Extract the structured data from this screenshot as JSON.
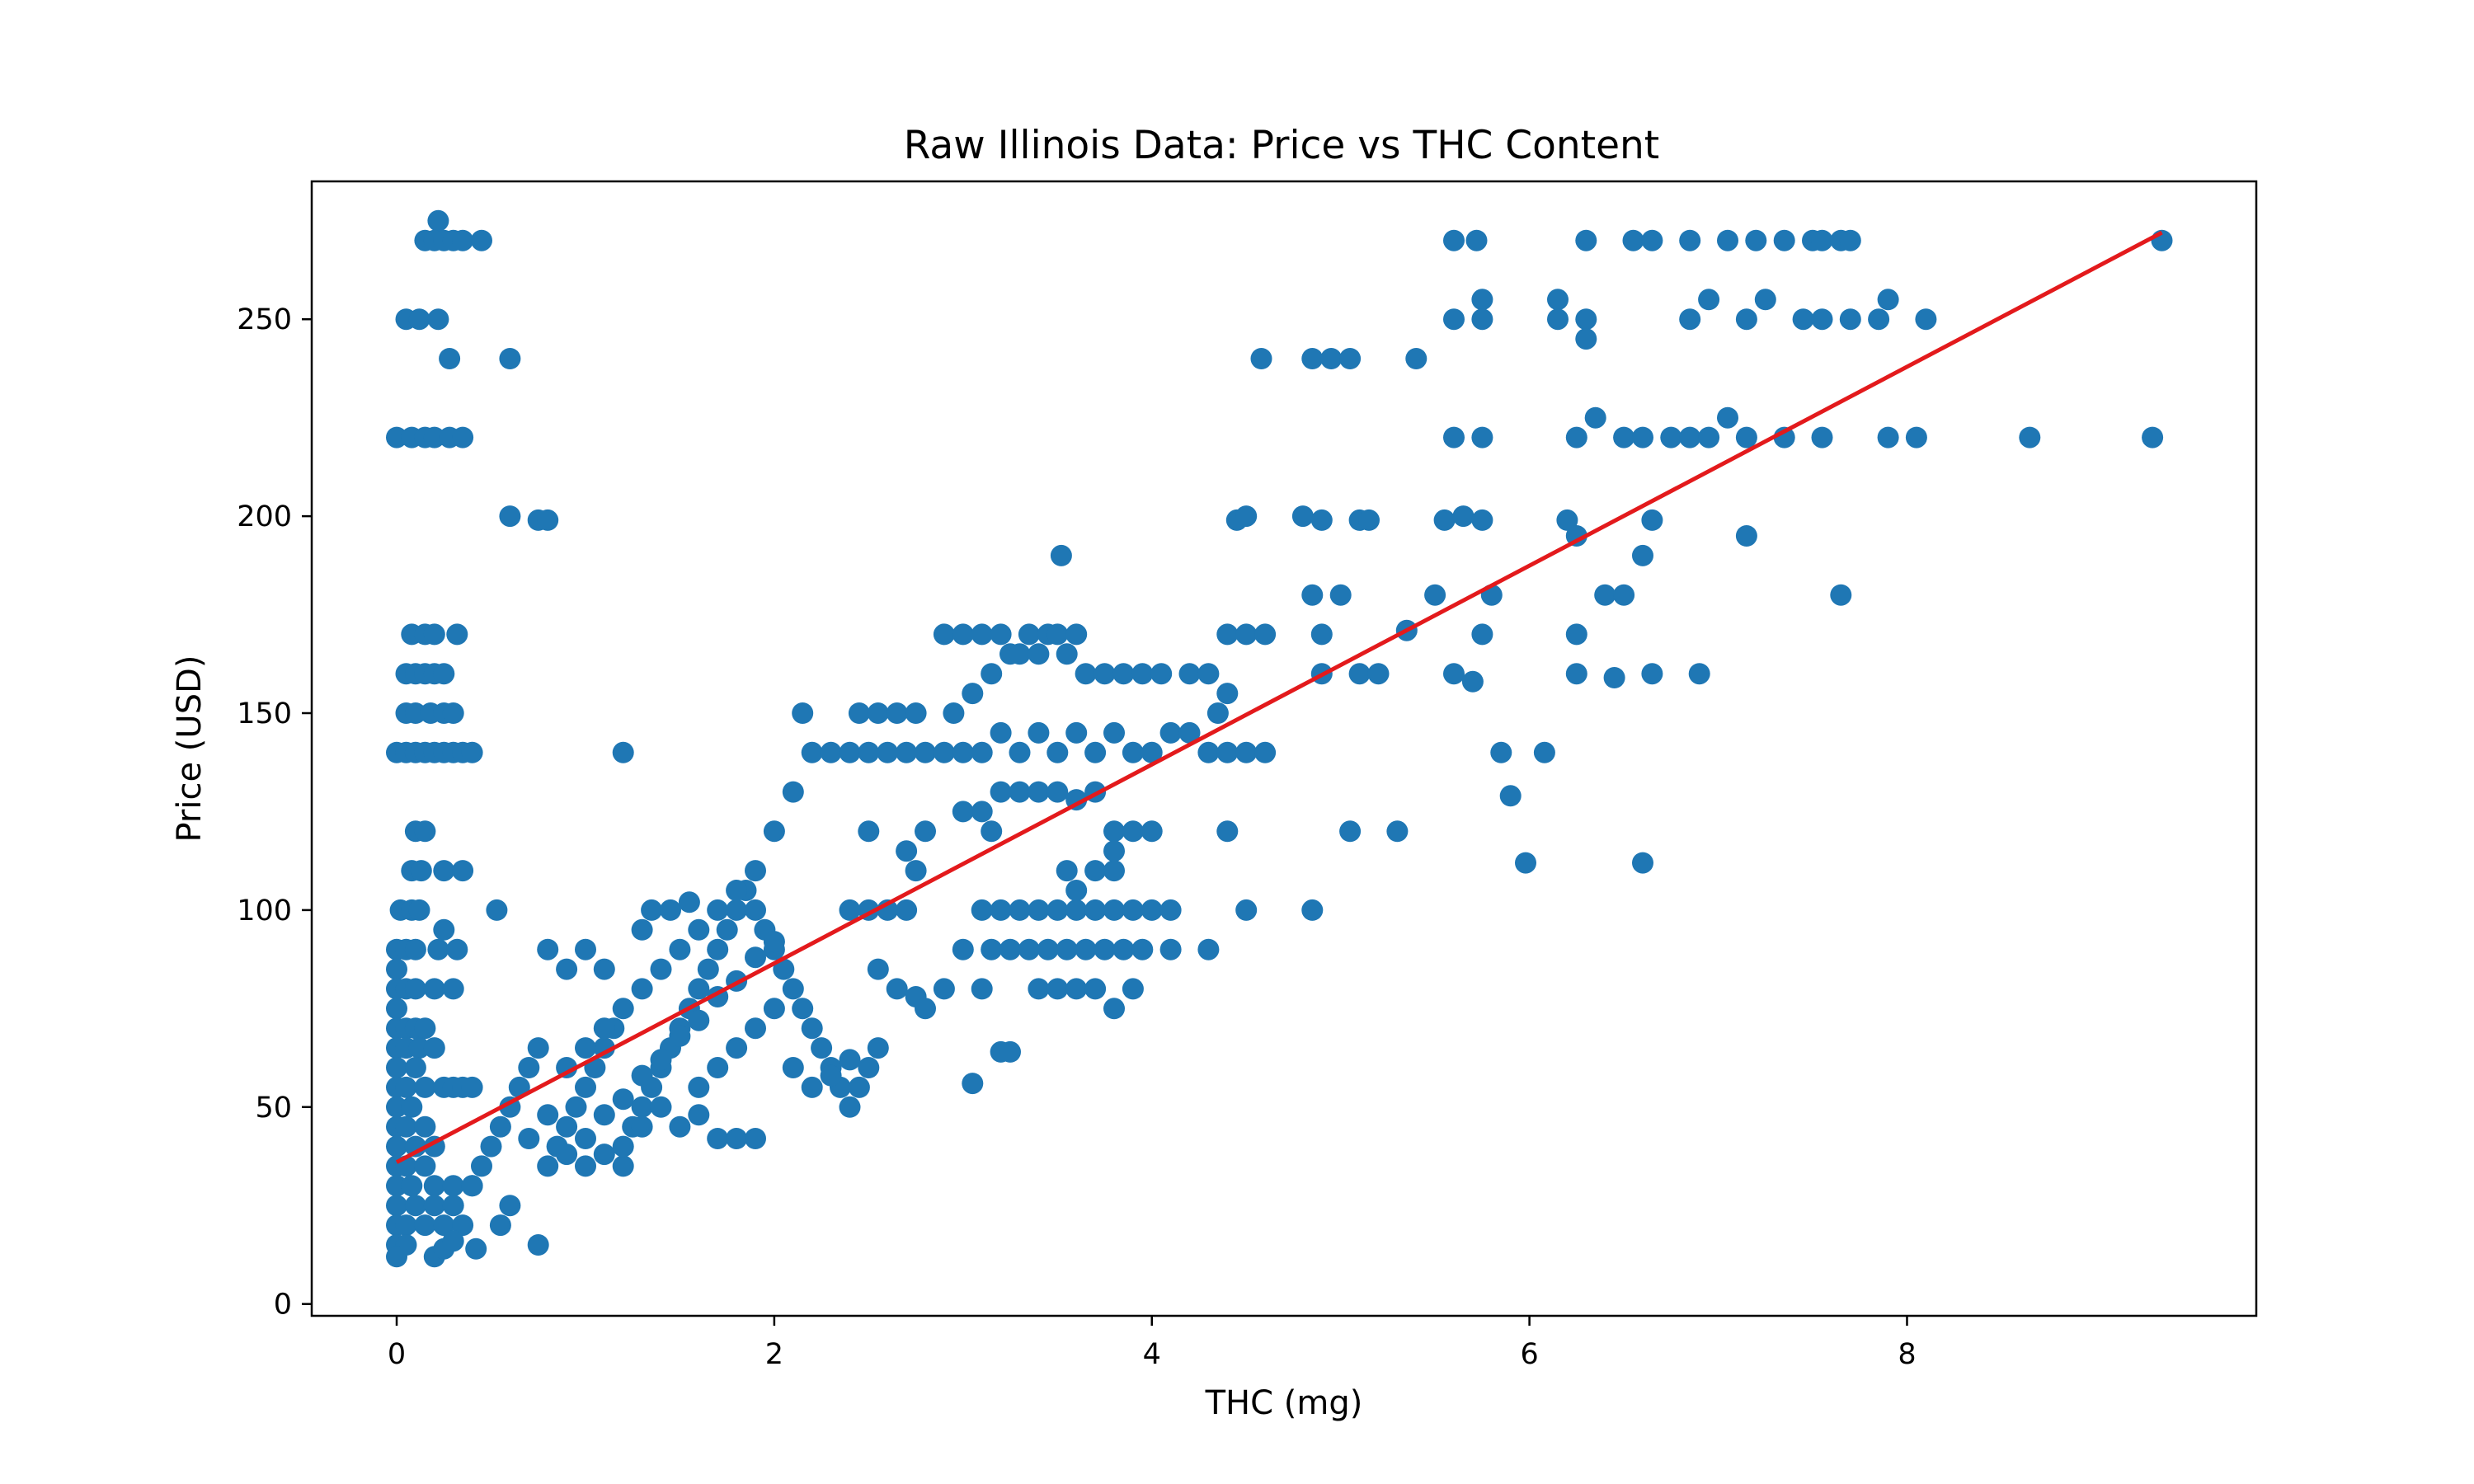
{
  "chart_data": {
    "type": "scatter",
    "title": "Raw Illinois Data: Price vs THC Content",
    "xlabel": "THC (mg)",
    "ylabel": "Price (USD)",
    "xlim": [
      -0.45,
      9.85
    ],
    "ylim": [
      -3,
      285
    ],
    "xticks": [
      0,
      2,
      4,
      6,
      8
    ],
    "yticks": [
      0,
      50,
      100,
      150,
      200,
      250
    ],
    "grid": false,
    "legend": "none",
    "colors": {
      "points": "#1f77b4",
      "fit": "#e31a1c"
    },
    "fit_line": {
      "x": [
        0.0,
        9.35
      ],
      "y": [
        36,
        272
      ]
    },
    "points": [
      [
        0.0,
        220
      ],
      [
        0.08,
        220
      ],
      [
        0.15,
        220
      ],
      [
        0.2,
        220
      ],
      [
        0.28,
        220
      ],
      [
        0.35,
        220
      ],
      [
        0.22,
        275
      ],
      [
        0.15,
        270
      ],
      [
        0.2,
        270
      ],
      [
        0.25,
        270
      ],
      [
        0.3,
        270
      ],
      [
        0.35,
        270
      ],
      [
        0.45,
        270
      ],
      [
        0.05,
        250
      ],
      [
        0.12,
        250
      ],
      [
        0.22,
        250
      ],
      [
        0.28,
        240
      ],
      [
        0.6,
        240
      ],
      [
        0.6,
        200
      ],
      [
        0.75,
        199
      ],
      [
        0.8,
        199
      ],
      [
        0.08,
        170
      ],
      [
        0.15,
        170
      ],
      [
        0.2,
        170
      ],
      [
        0.32,
        170
      ],
      [
        0.05,
        160
      ],
      [
        0.1,
        160
      ],
      [
        0.15,
        160
      ],
      [
        0.2,
        160
      ],
      [
        0.25,
        160
      ],
      [
        0.05,
        150
      ],
      [
        0.1,
        150
      ],
      [
        0.18,
        150
      ],
      [
        0.25,
        150
      ],
      [
        0.3,
        150
      ],
      [
        0.0,
        140
      ],
      [
        0.05,
        140
      ],
      [
        0.1,
        140
      ],
      [
        0.15,
        140
      ],
      [
        0.2,
        140
      ],
      [
        0.25,
        140
      ],
      [
        0.3,
        140
      ],
      [
        0.35,
        140
      ],
      [
        0.4,
        140
      ],
      [
        1.2,
        140
      ],
      [
        0.1,
        120
      ],
      [
        0.15,
        120
      ],
      [
        0.08,
        110
      ],
      [
        0.13,
        110
      ],
      [
        0.25,
        110
      ],
      [
        0.35,
        110
      ],
      [
        0.02,
        100
      ],
      [
        0.08,
        100
      ],
      [
        0.12,
        100
      ],
      [
        0.25,
        95
      ],
      [
        0.53,
        100
      ],
      [
        0.0,
        90
      ],
      [
        0.05,
        90
      ],
      [
        0.1,
        90
      ],
      [
        0.22,
        90
      ],
      [
        0.32,
        90
      ],
      [
        0.0,
        85
      ],
      [
        0.0,
        80
      ],
      [
        0.05,
        80
      ],
      [
        0.1,
        80
      ],
      [
        0.2,
        80
      ],
      [
        0.3,
        80
      ],
      [
        0.0,
        75
      ],
      [
        0.0,
        70
      ],
      [
        0.05,
        70
      ],
      [
        0.1,
        70
      ],
      [
        0.15,
        70
      ],
      [
        0.0,
        65
      ],
      [
        0.05,
        65
      ],
      [
        0.12,
        65
      ],
      [
        0.2,
        65
      ],
      [
        0.0,
        60
      ],
      [
        0.1,
        60
      ],
      [
        0.0,
        55
      ],
      [
        0.05,
        55
      ],
      [
        0.15,
        55
      ],
      [
        0.25,
        55
      ],
      [
        0.3,
        55
      ],
      [
        0.35,
        55
      ],
      [
        0.4,
        55
      ],
      [
        0.0,
        50
      ],
      [
        0.08,
        50
      ],
      [
        0.0,
        45
      ],
      [
        0.05,
        45
      ],
      [
        0.15,
        45
      ],
      [
        0.0,
        40
      ],
      [
        0.1,
        40
      ],
      [
        0.2,
        40
      ],
      [
        0.0,
        35
      ],
      [
        0.05,
        35
      ],
      [
        0.15,
        35
      ],
      [
        0.0,
        30
      ],
      [
        0.08,
        30
      ],
      [
        0.2,
        30
      ],
      [
        0.3,
        30
      ],
      [
        0.4,
        30
      ],
      [
        0.0,
        25
      ],
      [
        0.1,
        25
      ],
      [
        0.2,
        25
      ],
      [
        0.3,
        25
      ],
      [
        0.0,
        20
      ],
      [
        0.05,
        20
      ],
      [
        0.15,
        20
      ],
      [
        0.25,
        20
      ],
      [
        0.35,
        20
      ],
      [
        0.0,
        15
      ],
      [
        0.05,
        15
      ],
      [
        0.0,
        12
      ],
      [
        0.2,
        12
      ],
      [
        0.25,
        14
      ],
      [
        0.3,
        16
      ],
      [
        0.42,
        14
      ],
      [
        0.55,
        20
      ],
      [
        0.6,
        25
      ],
      [
        0.75,
        15
      ],
      [
        0.4,
        30
      ],
      [
        0.45,
        35
      ],
      [
        0.5,
        40
      ],
      [
        0.55,
        45
      ],
      [
        0.6,
        50
      ],
      [
        0.65,
        55
      ],
      [
        0.7,
        60
      ],
      [
        0.75,
        65
      ],
      [
        0.8,
        35
      ],
      [
        0.85,
        40
      ],
      [
        0.9,
        45
      ],
      [
        0.95,
        50
      ],
      [
        1.0,
        55
      ],
      [
        1.05,
        60
      ],
      [
        1.1,
        65
      ],
      [
        1.15,
        70
      ],
      [
        1.2,
        35
      ],
      [
        1.25,
        45
      ],
      [
        1.3,
        50
      ],
      [
        1.35,
        55
      ],
      [
        1.4,
        60
      ],
      [
        1.45,
        65
      ],
      [
        1.5,
        70
      ],
      [
        1.55,
        75
      ],
      [
        1.6,
        80
      ],
      [
        1.65,
        85
      ],
      [
        1.7,
        90
      ],
      [
        1.75,
        95
      ],
      [
        1.8,
        100
      ],
      [
        1.85,
        105
      ],
      [
        1.9,
        100
      ],
      [
        1.95,
        95
      ],
      [
        2.0,
        90
      ],
      [
        2.05,
        85
      ],
      [
        2.1,
        80
      ],
      [
        2.15,
        75
      ],
      [
        2.2,
        70
      ],
      [
        2.25,
        65
      ],
      [
        2.3,
        60
      ],
      [
        2.35,
        55
      ],
      [
        2.4,
        50
      ],
      [
        2.45,
        55
      ],
      [
        2.5,
        60
      ],
      [
        2.55,
        65
      ],
      [
        0.7,
        42
      ],
      [
        0.8,
        48
      ],
      [
        0.9,
        38
      ],
      [
        1.0,
        42
      ],
      [
        1.1,
        48
      ],
      [
        1.2,
        52
      ],
      [
        1.3,
        58
      ],
      [
        1.4,
        62
      ],
      [
        1.5,
        68
      ],
      [
        1.6,
        72
      ],
      [
        1.7,
        78
      ],
      [
        1.8,
        82
      ],
      [
        1.9,
        88
      ],
      [
        2.0,
        92
      ],
      [
        0.9,
        60
      ],
      [
        1.0,
        65
      ],
      [
        1.1,
        70
      ],
      [
        1.2,
        75
      ],
      [
        1.3,
        80
      ],
      [
        1.4,
        85
      ],
      [
        1.5,
        90
      ],
      [
        1.6,
        95
      ],
      [
        1.7,
        100
      ],
      [
        1.8,
        105
      ],
      [
        1.9,
        110
      ],
      [
        1.0,
        90
      ],
      [
        0.9,
        85
      ],
      [
        0.8,
        90
      ],
      [
        1.1,
        85
      ],
      [
        1.3,
        95
      ],
      [
        1.35,
        100
      ],
      [
        1.45,
        100
      ],
      [
        1.55,
        102
      ],
      [
        1.6,
        48
      ],
      [
        1.7,
        42
      ],
      [
        1.8,
        42
      ],
      [
        1.9,
        42
      ],
      [
        1.5,
        45
      ],
      [
        1.4,
        50
      ],
      [
        1.0,
        35
      ],
      [
        1.1,
        38
      ],
      [
        1.2,
        40
      ],
      [
        1.3,
        45
      ],
      [
        1.6,
        55
      ],
      [
        1.7,
        60
      ],
      [
        1.8,
        65
      ],
      [
        1.9,
        70
      ],
      [
        2.0,
        75
      ],
      [
        2.1,
        60
      ],
      [
        2.2,
        55
      ],
      [
        2.3,
        58
      ],
      [
        2.4,
        62
      ],
      [
        2.0,
        120
      ],
      [
        2.1,
        130
      ],
      [
        2.15,
        150
      ],
      [
        2.2,
        140
      ],
      [
        2.3,
        140
      ],
      [
        2.4,
        140
      ],
      [
        2.5,
        140
      ],
      [
        2.6,
        140
      ],
      [
        2.7,
        140
      ],
      [
        2.8,
        140
      ],
      [
        2.9,
        140
      ],
      [
        3.0,
        140
      ],
      [
        2.45,
        150
      ],
      [
        2.55,
        150
      ],
      [
        2.65,
        150
      ],
      [
        2.75,
        150
      ],
      [
        2.5,
        100
      ],
      [
        2.4,
        100
      ],
      [
        2.6,
        100
      ],
      [
        2.7,
        100
      ],
      [
        2.55,
        85
      ],
      [
        2.65,
        80
      ],
      [
        2.75,
        78
      ],
      [
        2.8,
        75
      ],
      [
        2.9,
        80
      ],
      [
        3.0,
        90
      ],
      [
        3.05,
        56
      ],
      [
        3.1,
        80
      ],
      [
        3.2,
        64
      ],
      [
        3.25,
        64
      ],
      [
        2.5,
        120
      ],
      [
        2.7,
        115
      ],
      [
        2.8,
        120
      ],
      [
        2.75,
        110
      ],
      [
        3.0,
        125
      ],
      [
        3.1,
        125
      ],
      [
        3.15,
        120
      ],
      [
        3.2,
        130
      ],
      [
        3.3,
        130
      ],
      [
        3.4,
        130
      ],
      [
        3.5,
        130
      ],
      [
        3.6,
        128
      ],
      [
        3.7,
        130
      ],
      [
        3.8,
        120
      ],
      [
        2.95,
        150
      ],
      [
        3.05,
        155
      ],
      [
        3.15,
        160
      ],
      [
        3.25,
        165
      ],
      [
        3.35,
        170
      ],
      [
        3.45,
        170
      ],
      [
        3.55,
        165
      ],
      [
        3.65,
        160
      ],
      [
        3.75,
        160
      ],
      [
        3.85,
        160
      ],
      [
        3.95,
        160
      ],
      [
        2.9,
        170
      ],
      [
        3.0,
        170
      ],
      [
        3.1,
        170
      ],
      [
        3.2,
        170
      ],
      [
        3.3,
        165
      ],
      [
        3.4,
        165
      ],
      [
        3.5,
        170
      ],
      [
        3.6,
        170
      ],
      [
        3.1,
        140
      ],
      [
        3.2,
        145
      ],
      [
        3.3,
        140
      ],
      [
        3.4,
        145
      ],
      [
        3.5,
        140
      ],
      [
        3.6,
        145
      ],
      [
        3.7,
        140
      ],
      [
        3.8,
        145
      ],
      [
        3.9,
        140
      ],
      [
        4.0,
        140
      ],
      [
        4.1,
        145
      ],
      [
        4.2,
        145
      ],
      [
        4.3,
        140
      ],
      [
        4.4,
        140
      ],
      [
        4.5,
        140
      ],
      [
        4.6,
        140
      ],
      [
        4.05,
        160
      ],
      [
        4.2,
        160
      ],
      [
        4.3,
        160
      ],
      [
        4.4,
        170
      ],
      [
        4.5,
        170
      ],
      [
        4.6,
        170
      ],
      [
        4.35,
        150
      ],
      [
        4.4,
        155
      ],
      [
        3.1,
        100
      ],
      [
        3.2,
        100
      ],
      [
        3.3,
        100
      ],
      [
        3.4,
        100
      ],
      [
        3.5,
        100
      ],
      [
        3.6,
        100
      ],
      [
        3.7,
        100
      ],
      [
        3.8,
        100
      ],
      [
        3.9,
        100
      ],
      [
        4.0,
        100
      ],
      [
        3.15,
        90
      ],
      [
        3.25,
        90
      ],
      [
        3.35,
        90
      ],
      [
        3.45,
        90
      ],
      [
        3.55,
        90
      ],
      [
        3.65,
        90
      ],
      [
        3.75,
        90
      ],
      [
        3.85,
        90
      ],
      [
        3.95,
        90
      ],
      [
        4.1,
        90
      ],
      [
        4.3,
        90
      ],
      [
        3.4,
        80
      ],
      [
        3.5,
        80
      ],
      [
        3.6,
        80
      ],
      [
        3.7,
        80
      ],
      [
        3.8,
        75
      ],
      [
        3.9,
        80
      ],
      [
        4.1,
        100
      ],
      [
        4.4,
        120
      ],
      [
        4.5,
        100
      ],
      [
        3.55,
        110
      ],
      [
        3.7,
        110
      ],
      [
        3.8,
        110
      ],
      [
        3.6,
        105
      ],
      [
        3.8,
        115
      ],
      [
        3.9,
        120
      ],
      [
        4.0,
        120
      ],
      [
        3.52,
        190
      ],
      [
        4.58,
        240
      ],
      [
        4.85,
        240
      ],
      [
        4.95,
        240
      ],
      [
        5.05,
        240
      ],
      [
        5.4,
        240
      ],
      [
        4.45,
        199
      ],
      [
        4.5,
        200
      ],
      [
        4.8,
        200
      ],
      [
        4.9,
        199
      ],
      [
        5.1,
        199
      ],
      [
        5.15,
        199
      ],
      [
        5.55,
        199
      ],
      [
        5.65,
        200
      ],
      [
        5.75,
        199
      ],
      [
        4.85,
        180
      ],
      [
        5.0,
        180
      ],
      [
        5.5,
        180
      ],
      [
        5.8,
        180
      ],
      [
        4.9,
        170
      ],
      [
        4.9,
        160
      ],
      [
        5.1,
        160
      ],
      [
        5.2,
        160
      ],
      [
        5.35,
        171
      ],
      [
        5.6,
        160
      ],
      [
        5.7,
        158
      ],
      [
        5.75,
        170
      ],
      [
        5.85,
        140
      ],
      [
        5.9,
        129
      ],
      [
        5.98,
        112
      ],
      [
        6.08,
        140
      ],
      [
        5.05,
        120
      ],
      [
        5.3,
        120
      ],
      [
        4.85,
        100
      ],
      [
        5.6,
        270
      ],
      [
        5.72,
        270
      ],
      [
        5.6,
        250
      ],
      [
        5.75,
        255
      ],
      [
        5.75,
        250
      ],
      [
        5.6,
        220
      ],
      [
        5.75,
        220
      ],
      [
        6.3,
        270
      ],
      [
        6.55,
        270
      ],
      [
        6.65,
        270
      ],
      [
        6.85,
        270
      ],
      [
        7.05,
        270
      ],
      [
        7.2,
        270
      ],
      [
        7.35,
        270
      ],
      [
        7.5,
        270
      ],
      [
        7.55,
        270
      ],
      [
        7.65,
        270
      ],
      [
        7.7,
        270
      ],
      [
        6.15,
        255
      ],
      [
        6.15,
        250
      ],
      [
        6.3,
        250
      ],
      [
        6.85,
        250
      ],
      [
        6.95,
        255
      ],
      [
        7.25,
        255
      ],
      [
        7.15,
        250
      ],
      [
        7.45,
        250
      ],
      [
        7.55,
        250
      ],
      [
        7.7,
        250
      ],
      [
        7.85,
        250
      ],
      [
        7.9,
        255
      ],
      [
        8.1,
        250
      ],
      [
        6.3,
        245
      ],
      [
        6.25,
        220
      ],
      [
        6.35,
        225
      ],
      [
        6.5,
        220
      ],
      [
        6.6,
        220
      ],
      [
        6.75,
        220
      ],
      [
        6.85,
        220
      ],
      [
        6.95,
        220
      ],
      [
        7.05,
        225
      ],
      [
        7.15,
        220
      ],
      [
        7.35,
        220
      ],
      [
        7.55,
        220
      ],
      [
        7.9,
        220
      ],
      [
        8.05,
        220
      ],
      [
        8.65,
        220
      ],
      [
        9.3,
        220
      ],
      [
        9.35,
        270
      ],
      [
        6.2,
        199
      ],
      [
        6.25,
        195
      ],
      [
        6.65,
        199
      ],
      [
        6.6,
        190
      ],
      [
        6.4,
        180
      ],
      [
        6.5,
        180
      ],
      [
        6.25,
        170
      ],
      [
        6.25,
        160
      ],
      [
        6.45,
        159
      ],
      [
        6.65,
        160
      ],
      [
        6.9,
        160
      ],
      [
        7.15,
        195
      ],
      [
        7.65,
        180
      ],
      [
        6.6,
        112
      ]
    ]
  }
}
